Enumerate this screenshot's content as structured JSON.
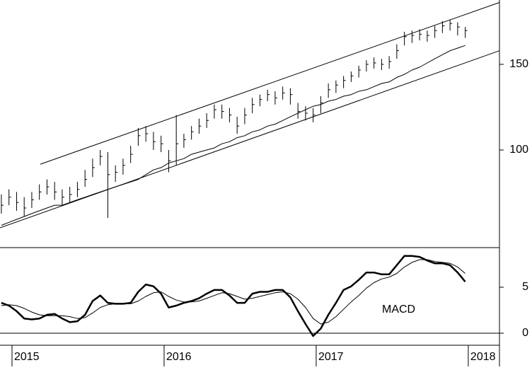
{
  "chart_data": [
    {
      "type": "ohlc",
      "log_scale": true,
      "color": "#000000",
      "xlim": [
        2014.921,
        2018.205
      ],
      "ylim": [
        63,
        203.4
      ],
      "yticks": [
        100,
        150
      ],
      "x": [
        2014.93,
        2014.98,
        2015.03,
        2015.08,
        2015.13,
        2015.18,
        2015.23,
        2015.28,
        2015.33,
        2015.38,
        2015.43,
        2015.48,
        2015.53,
        2015.58,
        2015.63,
        2015.68,
        2015.73,
        2015.78,
        2015.83,
        2015.88,
        2015.93,
        2015.98,
        2016.03,
        2016.08,
        2016.13,
        2016.18,
        2016.23,
        2016.28,
        2016.33,
        2016.38,
        2016.43,
        2016.48,
        2016.53,
        2016.58,
        2016.63,
        2016.68,
        2016.73,
        2016.78,
        2016.83,
        2016.88,
        2016.93,
        2016.98,
        2017.03,
        2017.08,
        2017.13,
        2017.18,
        2017.23,
        2017.28,
        2017.33,
        2017.38,
        2017.43,
        2017.48,
        2017.53,
        2017.58,
        2017.63,
        2017.68,
        2017.73,
        2017.78,
        2017.83,
        2017.88,
        2017.93,
        2017.98
      ],
      "high": [
        81,
        83,
        82,
        80,
        82,
        85,
        87,
        86,
        83,
        84,
        86,
        91,
        96,
        100,
        99,
        93,
        96,
        102,
        111,
        112,
        109,
        107,
        100,
        118,
        108,
        112,
        116,
        119,
        124,
        124,
        122,
        117,
        122,
        128,
        130,
        133,
        132,
        135,
        134,
        125,
        123,
        122,
        129,
        137,
        139,
        142,
        145,
        149,
        153,
        155,
        154,
        156,
        165,
        175,
        176,
        177,
        176,
        180,
        184,
        185,
        183,
        179
      ],
      "low": [
        74,
        77,
        75,
        73,
        76,
        79,
        81,
        79,
        77,
        78,
        80,
        84,
        88,
        93,
        72.5,
        86,
        89,
        94,
        102,
        104,
        100,
        99,
        90,
        93,
        101,
        105,
        108,
        111,
        116,
        116,
        114,
        108,
        113,
        119,
        123,
        126,
        124,
        127,
        124,
        116,
        115,
        114,
        119,
        128,
        131,
        134,
        138,
        141,
        145,
        147,
        146,
        147,
        154,
        164,
        166,
        168,
        167,
        170,
        174,
        176,
        172,
        170
      ],
      "close": [
        77,
        80,
        78,
        76,
        79,
        82,
        84,
        82,
        80,
        81,
        83,
        87,
        92,
        97,
        89,
        90,
        93,
        98,
        107,
        108,
        104,
        103,
        95,
        103,
        105,
        109,
        112,
        115,
        121,
        120,
        118,
        112,
        118,
        124,
        127,
        130,
        128,
        131,
        130,
        120,
        119,
        118,
        125,
        133,
        136,
        139,
        142,
        146,
        150,
        151,
        150,
        152,
        160,
        171,
        172,
        173,
        172,
        176,
        180,
        182,
        179,
        176
      ],
      "moving_average": [
        70,
        71,
        72,
        73,
        74,
        75,
        76,
        77,
        77,
        78,
        79,
        80,
        81,
        82,
        83,
        84,
        85,
        86,
        87,
        89,
        91,
        92,
        94,
        95,
        96,
        98,
        99,
        100,
        101,
        103,
        104,
        106,
        107,
        109,
        110,
        112,
        113,
        115,
        117,
        119,
        121,
        123,
        124,
        126,
        127,
        129,
        130,
        132,
        133,
        135,
        137,
        138,
        141,
        143,
        146,
        148,
        151,
        154,
        157,
        160,
        162,
        164
      ],
      "trend_lines": [
        {
          "x": [
            2015.186,
            2018.205
          ],
          "values": [
            93.5,
            201
          ]
        },
        {
          "x": [
            2014.921,
            2018.205
          ],
          "values": [
            69.2,
            160
          ]
        }
      ]
    },
    {
      "type": "line",
      "annotation": "MACD",
      "zero_line": true,
      "xlim": [
        2014.921,
        2018.205
      ],
      "ylim": [
        -1.31,
        9.31
      ],
      "yticks": [
        0,
        5
      ],
      "xticks": [
        2015,
        2016,
        2017,
        2018
      ],
      "x": [
        2014.93,
        2014.98,
        2015.03,
        2015.08,
        2015.13,
        2015.18,
        2015.23,
        2015.28,
        2015.33,
        2015.38,
        2015.43,
        2015.48,
        2015.53,
        2015.58,
        2015.63,
        2015.68,
        2015.73,
        2015.78,
        2015.83,
        2015.88,
        2015.93,
        2015.98,
        2016.03,
        2016.08,
        2016.13,
        2016.18,
        2016.23,
        2016.28,
        2016.33,
        2016.38,
        2016.43,
        2016.48,
        2016.53,
        2016.58,
        2016.63,
        2016.68,
        2016.73,
        2016.78,
        2016.83,
        2016.88,
        2016.93,
        2016.98,
        2017.03,
        2017.08,
        2017.13,
        2017.18,
        2017.23,
        2017.28,
        2017.33,
        2017.38,
        2017.43,
        2017.48,
        2017.53,
        2017.58,
        2017.63,
        2017.68,
        2017.73,
        2017.78,
        2017.83,
        2017.88,
        2017.93,
        2017.98
      ],
      "series": [
        {
          "color": "#000000",
          "width": 2.5,
          "values": [
            3.3,
            3.0,
            2.4,
            1.6,
            1.5,
            1.6,
            2.0,
            2.1,
            1.6,
            1.2,
            1.3,
            2.0,
            3.5,
            4.1,
            3.3,
            3.2,
            3.2,
            3.3,
            4.5,
            5.3,
            5.1,
            4.3,
            2.8,
            3.0,
            3.3,
            3.5,
            3.8,
            4.3,
            4.7,
            4.7,
            4.1,
            3.3,
            3.3,
            4.3,
            4.5,
            4.5,
            4.7,
            4.7,
            3.9,
            2.4,
            1.0,
            -0.3,
            0.5,
            2.0,
            3.3,
            4.7,
            5.1,
            5.8,
            6.6,
            6.6,
            6.4,
            6.4,
            7.4,
            8.4,
            8.4,
            8.3,
            7.9,
            7.6,
            7.6,
            7.4,
            6.6,
            5.6
          ]
        },
        {
          "color": "#000000",
          "width": 1,
          "values": [
            3.0,
            3.1,
            3.0,
            2.7,
            2.3,
            2.0,
            1.9,
            1.9,
            1.9,
            1.8,
            1.6,
            1.7,
            2.2,
            2.8,
            3.1,
            3.2,
            3.2,
            3.2,
            3.5,
            4.0,
            4.4,
            4.5,
            4.0,
            3.6,
            3.4,
            3.4,
            3.5,
            3.8,
            4.1,
            4.4,
            4.3,
            4.0,
            3.7,
            3.8,
            4.0,
            4.2,
            4.4,
            4.5,
            4.3,
            3.7,
            2.8,
            1.6,
            1.0,
            1.2,
            1.8,
            2.6,
            3.4,
            4.1,
            4.9,
            5.5,
            5.9,
            6.1,
            6.5,
            7.2,
            7.7,
            8.0,
            8.0,
            7.8,
            7.7,
            7.6,
            7.2,
            6.5
          ]
        }
      ]
    }
  ]
}
